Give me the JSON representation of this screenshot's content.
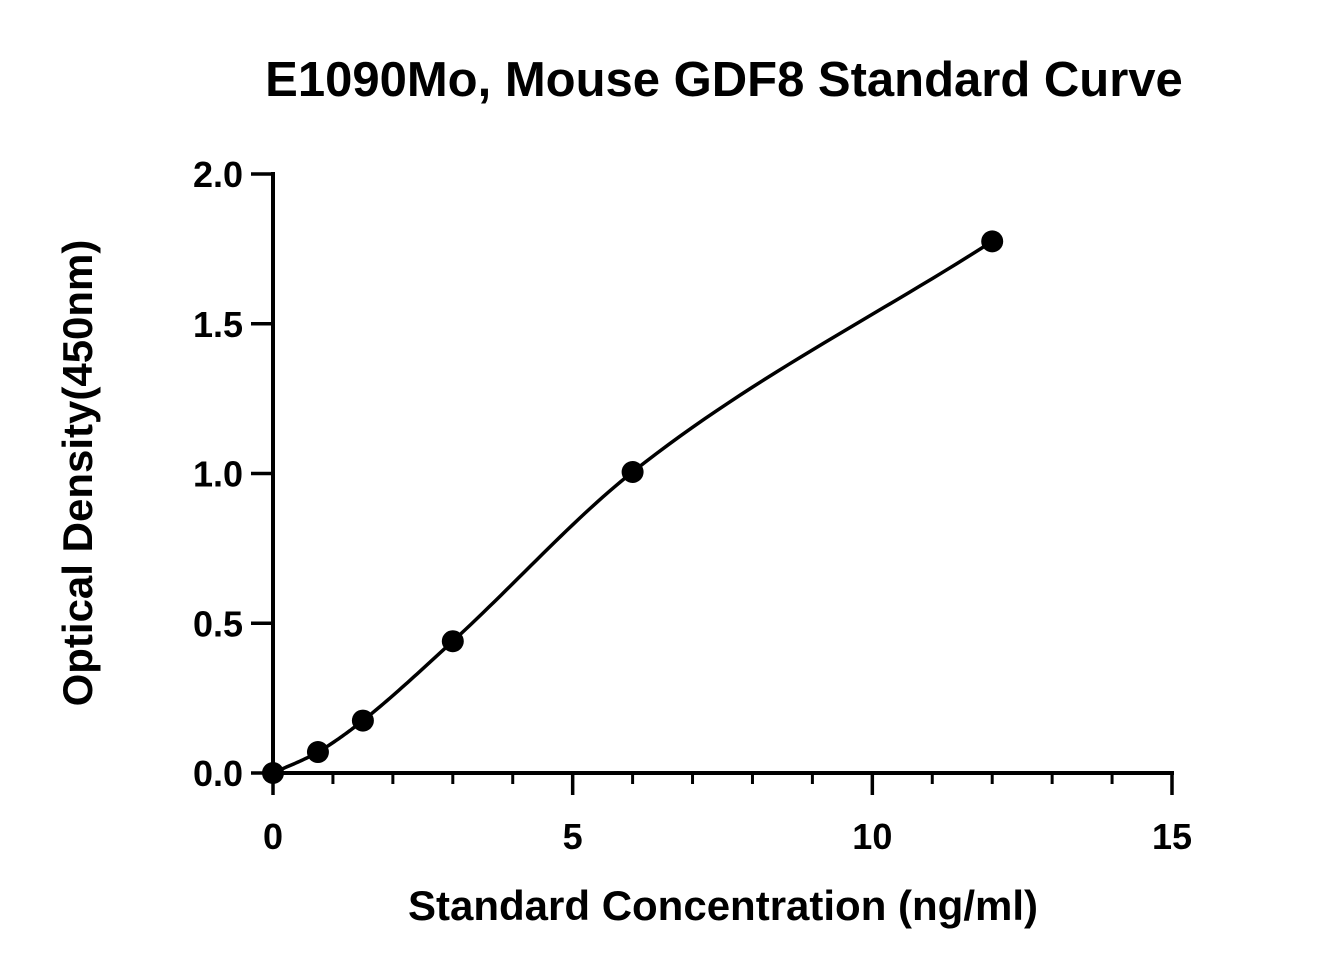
{
  "chart_data": {
    "type": "scatter",
    "title": "E1090Mo, Mouse GDF8 Standard Curve",
    "xlabel": "Standard Concentration (ng/ml)",
    "ylabel": "Optical Density(450nm)",
    "xlim": [
      0,
      15
    ],
    "ylim": [
      0,
      2.0
    ],
    "x_ticks": [
      0,
      5,
      10,
      15
    ],
    "x_tick_labels": [
      "0",
      "5",
      "10",
      "15"
    ],
    "x_minor_step": 1,
    "y_ticks": [
      0,
      0.5,
      1.0,
      1.5,
      2.0
    ],
    "y_tick_labels": [
      "0.0",
      "0.5",
      "1.0",
      "1.5",
      "2.0"
    ],
    "grid": false,
    "fitted_curve": true,
    "series": [
      {
        "x": [
          0,
          0.75,
          1.5,
          3,
          6,
          12
        ],
        "y": [
          0.0,
          0.07,
          0.175,
          0.44,
          1.005,
          1.775
        ]
      }
    ],
    "colors": {
      "axis": "#000000",
      "points": "#000000",
      "curve": "#000000"
    }
  }
}
